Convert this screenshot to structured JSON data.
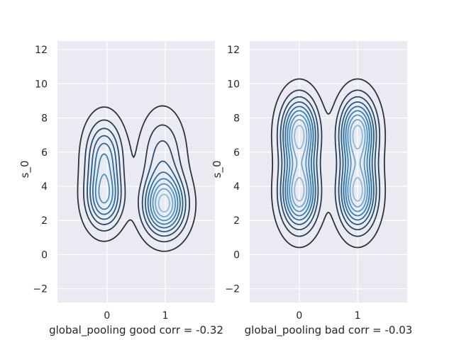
{
  "chart_data": [
    {
      "type": "kde-contour",
      "title": "",
      "xlabel": "global_pooling good corr = -0.32",
      "ylabel": "s_0",
      "xlim": [
        -0.85,
        1.85
      ],
      "ylim": [
        -2.8,
        12.5
      ],
      "xticks": [
        0,
        1
      ],
      "yticks": [
        -2,
        0,
        2,
        4,
        6,
        8,
        10,
        12
      ],
      "grid": true,
      "components": [
        {
          "x": -0.05,
          "y": 5.8,
          "sx": 0.2,
          "sy": 1.35,
          "w": 0.35
        },
        {
          "x": -0.05,
          "y": 3.3,
          "sx": 0.2,
          "sy": 1.15,
          "w": 0.42
        },
        {
          "x": 0.98,
          "y": 2.9,
          "sx": 0.23,
          "sy": 1.15,
          "w": 0.6
        },
        {
          "x": 0.95,
          "y": 5.8,
          "sx": 0.23,
          "sy": 1.6,
          "w": 0.2
        }
      ],
      "levels": 9
    },
    {
      "type": "kde-contour",
      "title": "",
      "xlabel": "global_pooling bad corr = -0.03",
      "ylabel": "s_0",
      "xlim": [
        -0.85,
        1.85
      ],
      "ylim": [
        -2.8,
        12.5
      ],
      "xticks": [
        0,
        1
      ],
      "yticks": [
        -2,
        0,
        2,
        4,
        6,
        8,
        10,
        12
      ],
      "grid": true,
      "components": [
        {
          "x": 0.0,
          "y": 3.6,
          "sx": 0.2,
          "sy": 1.35,
          "w": 0.5
        },
        {
          "x": 0.0,
          "y": 7.1,
          "sx": 0.2,
          "sy": 1.35,
          "w": 0.5
        },
        {
          "x": 1.0,
          "y": 3.6,
          "sx": 0.2,
          "sy": 1.35,
          "w": 0.5
        },
        {
          "x": 1.0,
          "y": 7.1,
          "sx": 0.2,
          "sy": 1.35,
          "w": 0.5
        }
      ],
      "levels": 9
    }
  ]
}
